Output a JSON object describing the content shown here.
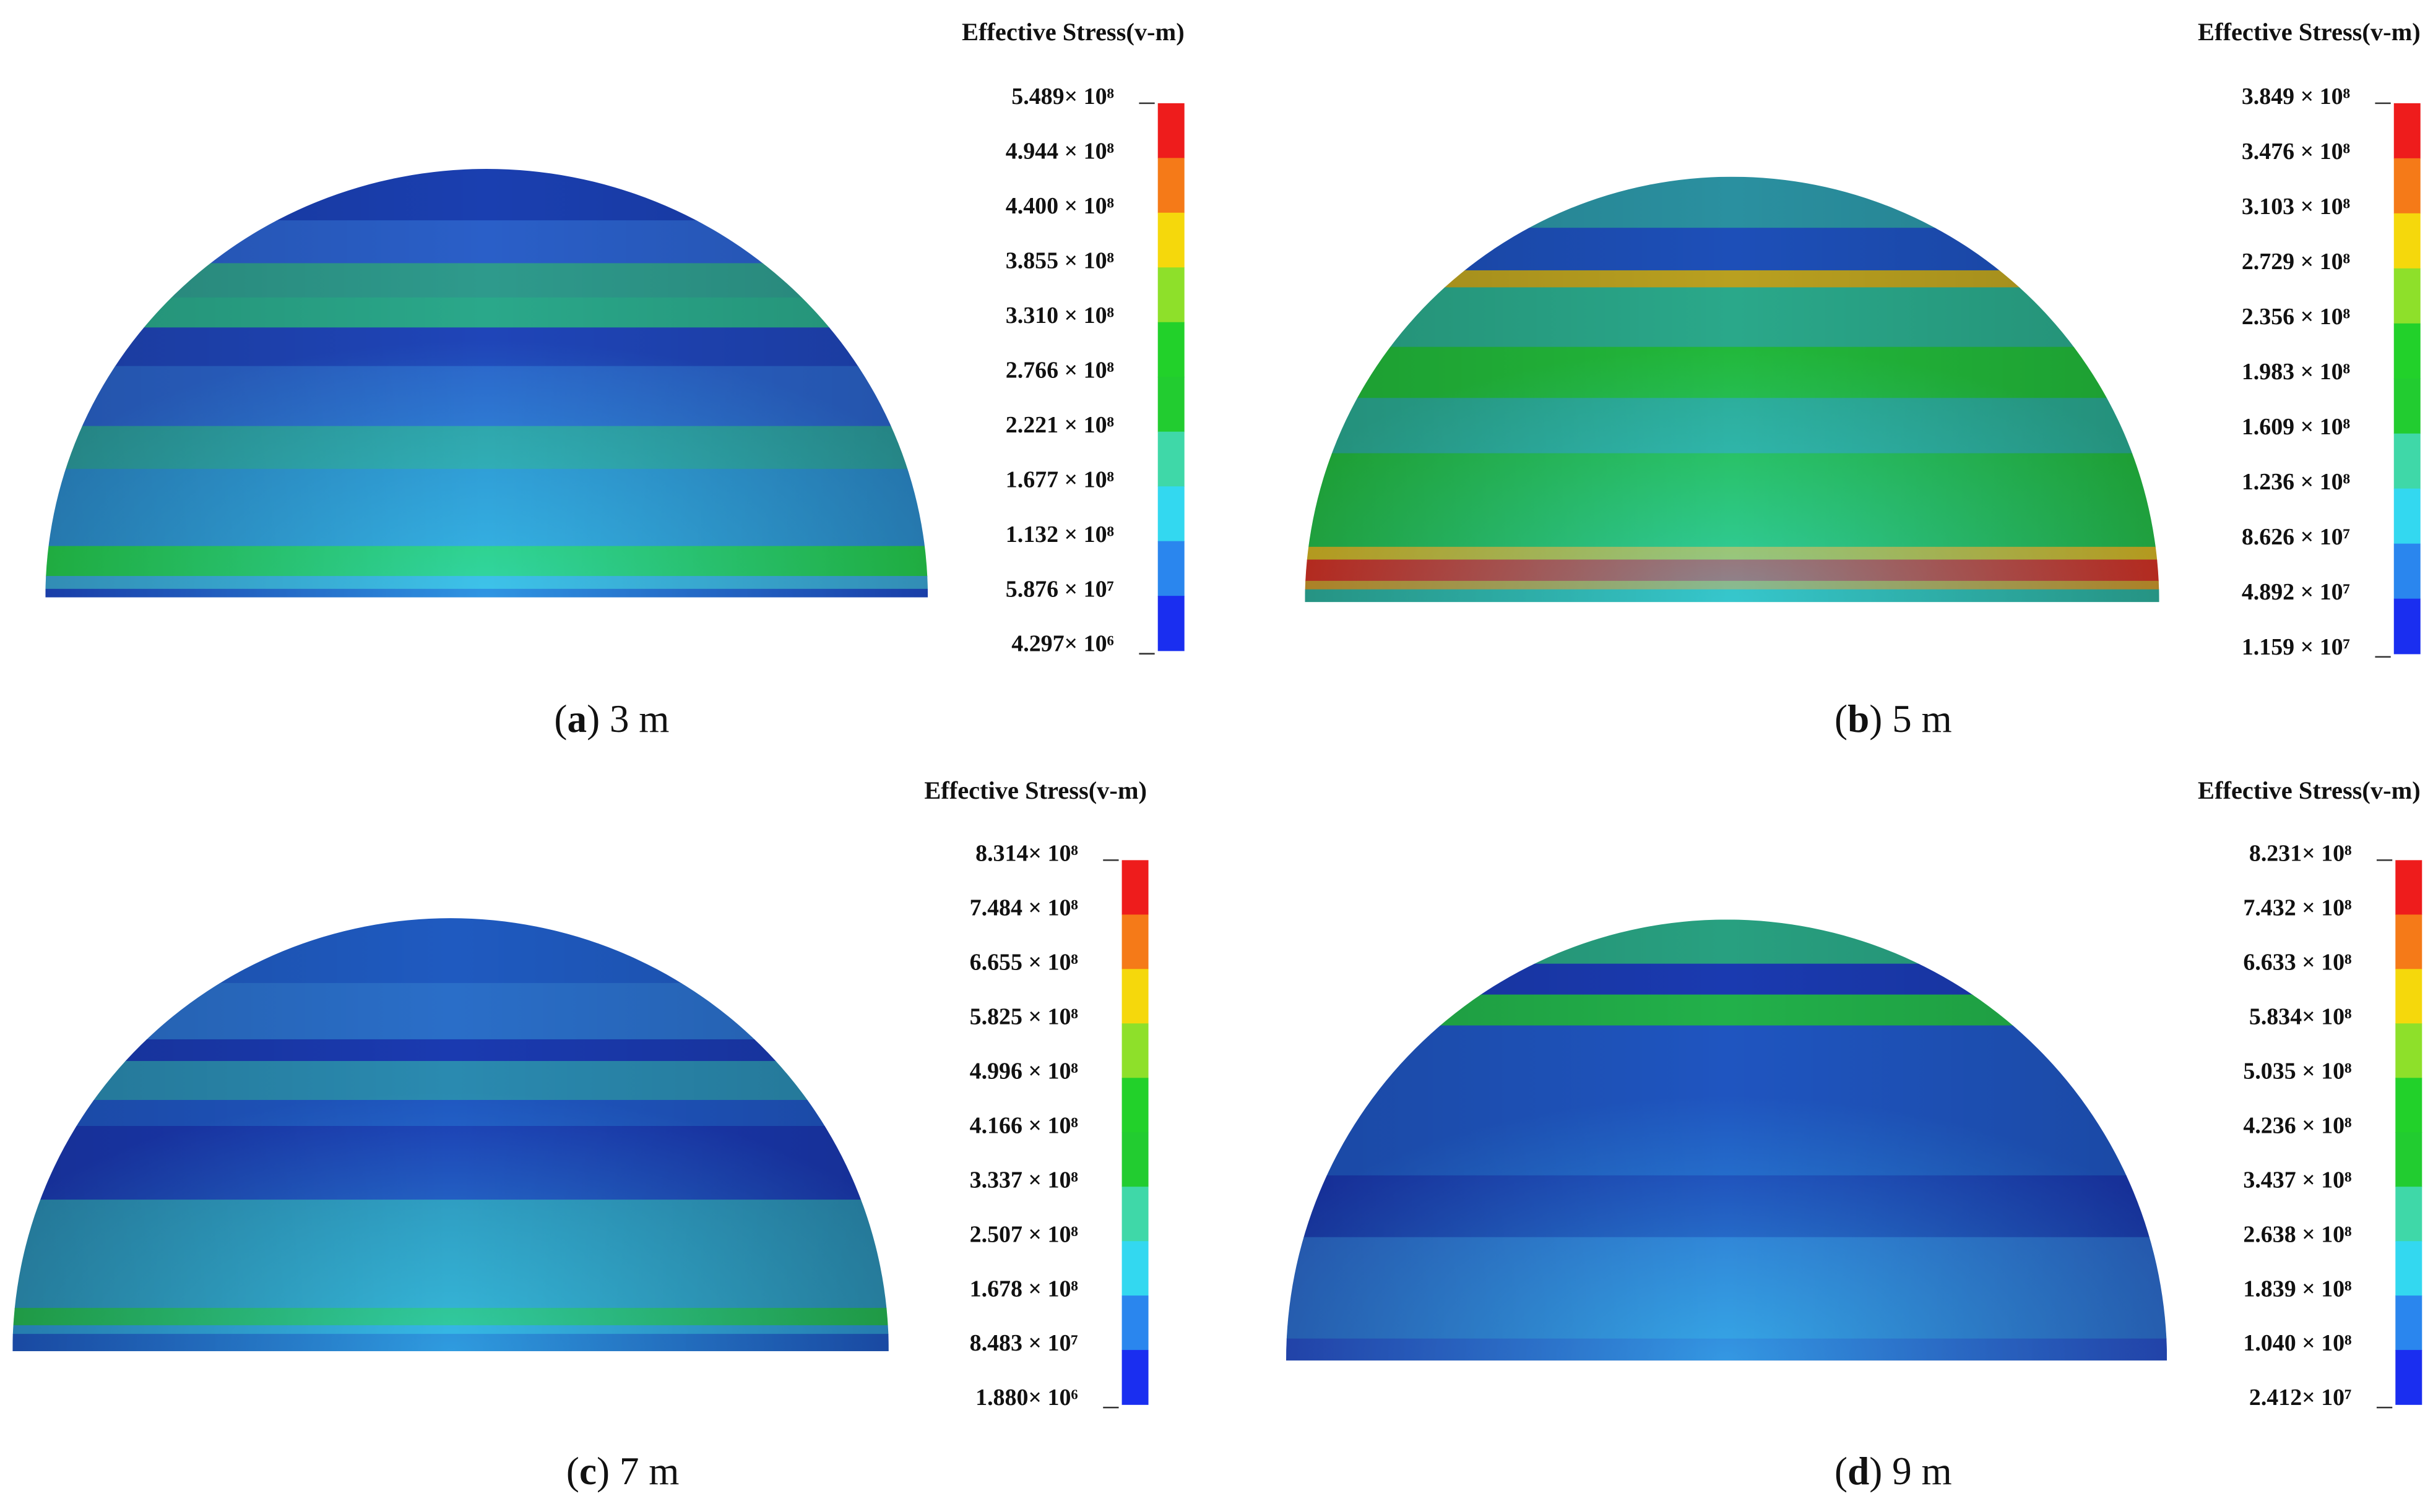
{
  "panels": [
    {
      "legend_title": "Effective Stress(v-m)",
      "legend_labels": [
        "5.489× 10⁸",
        "4.944 × 10⁸",
        "4.400 × 10⁸",
        "3.855 × 10⁸",
        "3.310 × 10⁸",
        "2.766 × 10⁸",
        "2.221 × 10⁸",
        "1.677 × 10⁸",
        "1.132 × 10⁸",
        "5.876 × 10⁷",
        "4.297× 10⁶"
      ],
      "caption": {
        "open": "(",
        "letter": "a",
        "rest": ") 3 m"
      }
    },
    {
      "legend_title": "Effective Stress(v-m)",
      "legend_labels": [
        "3.849 × 10⁸",
        "3.476 × 10⁸",
        "3.103 × 10⁸",
        "2.729 × 10⁸",
        "2.356 × 10⁸",
        "1.983 × 10⁸",
        "1.609 × 10⁸",
        "1.236 × 10⁸",
        "8.626 × 10⁷",
        "4.892 × 10⁷",
        "1.159 × 10⁷"
      ],
      "caption": {
        "open": "(",
        "letter": "b",
        "rest": ") 5 m"
      }
    },
    {
      "legend_title": "Effective Stress(v-m)",
      "legend_labels": [
        "8.314× 10⁸",
        "7.484 × 10⁸",
        "6.655 × 10⁸",
        "5.825 × 10⁸",
        "4.996 × 10⁸",
        "4.166 × 10⁸",
        "3.337 × 10⁸",
        "2.507 × 10⁸",
        "1.678 × 10⁸",
        "8.483 × 10⁷",
        "1.880× 10⁶"
      ],
      "caption": {
        "open": "(",
        "letter": "c",
        "rest": ") 7 m"
      }
    },
    {
      "legend_title": "Effective Stress(v-m)",
      "legend_labels": [
        "8.231× 10⁸",
        "7.432 × 10⁸",
        "6.633 × 10⁸",
        "5.834× 10⁸",
        "5.035 × 10⁸",
        "4.236 × 10⁸",
        "3.437 × 10⁸",
        "2.638 × 10⁸",
        "1.839 × 10⁸",
        "1.040 × 10⁸",
        "2.412× 10⁷"
      ],
      "caption": {
        "open": "(",
        "letter": "d",
        "rest": ") 9 m"
      }
    }
  ]
}
